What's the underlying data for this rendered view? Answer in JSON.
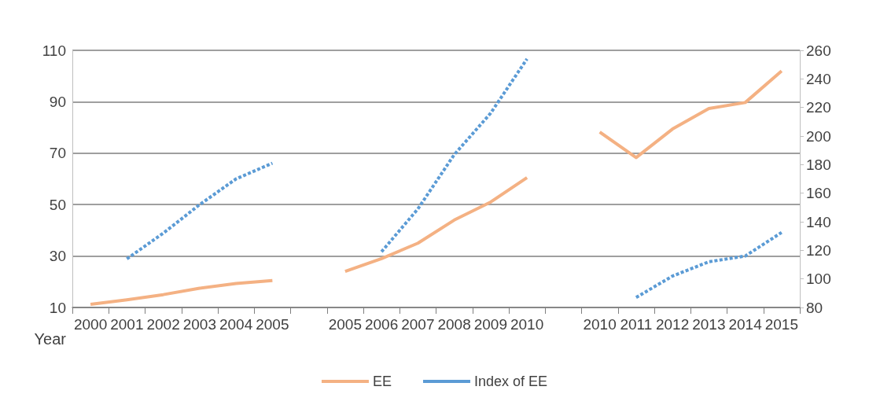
{
  "chart_data": {
    "type": "line",
    "xlabel": "Year",
    "categories": [
      "2000",
      "2001",
      "2002",
      "2003",
      "2004",
      "2005",
      null,
      "2005",
      "2006",
      "2007",
      "2008",
      "2009",
      "2010",
      null,
      "2010",
      "2011",
      "2012",
      "2013",
      "2014",
      "2015"
    ],
    "series": [
      {
        "name": "EE",
        "color": "#f4b183",
        "line_style": "solid",
        "values": [
          11.2,
          13,
          15,
          17.5,
          19.3,
          20.5,
          null,
          24,
          29,
          35,
          44,
          51,
          60.5,
          null,
          78.2,
          68.3,
          79.4,
          87.4,
          89.7,
          102
        ]
      },
      {
        "name": "Index of EE",
        "color": "#5b9bd5",
        "line_style": "dashed",
        "axis": "y2",
        "values": [
          null,
          114,
          132,
          152,
          170,
          181,
          null,
          null,
          119,
          149,
          187,
          216,
          254,
          null,
          null,
          87,
          102,
          112,
          116,
          132.5
        ]
      }
    ],
    "ylim": [
      10,
      110
    ],
    "yticks": [
      10,
      30,
      50,
      70,
      90,
      110
    ],
    "y2lim": [
      80,
      260
    ],
    "y2ticks": [
      80,
      100,
      120,
      140,
      160,
      180,
      200,
      220,
      240,
      260
    ],
    "grid": "y",
    "legend": "bottom",
    "marker": "none"
  }
}
